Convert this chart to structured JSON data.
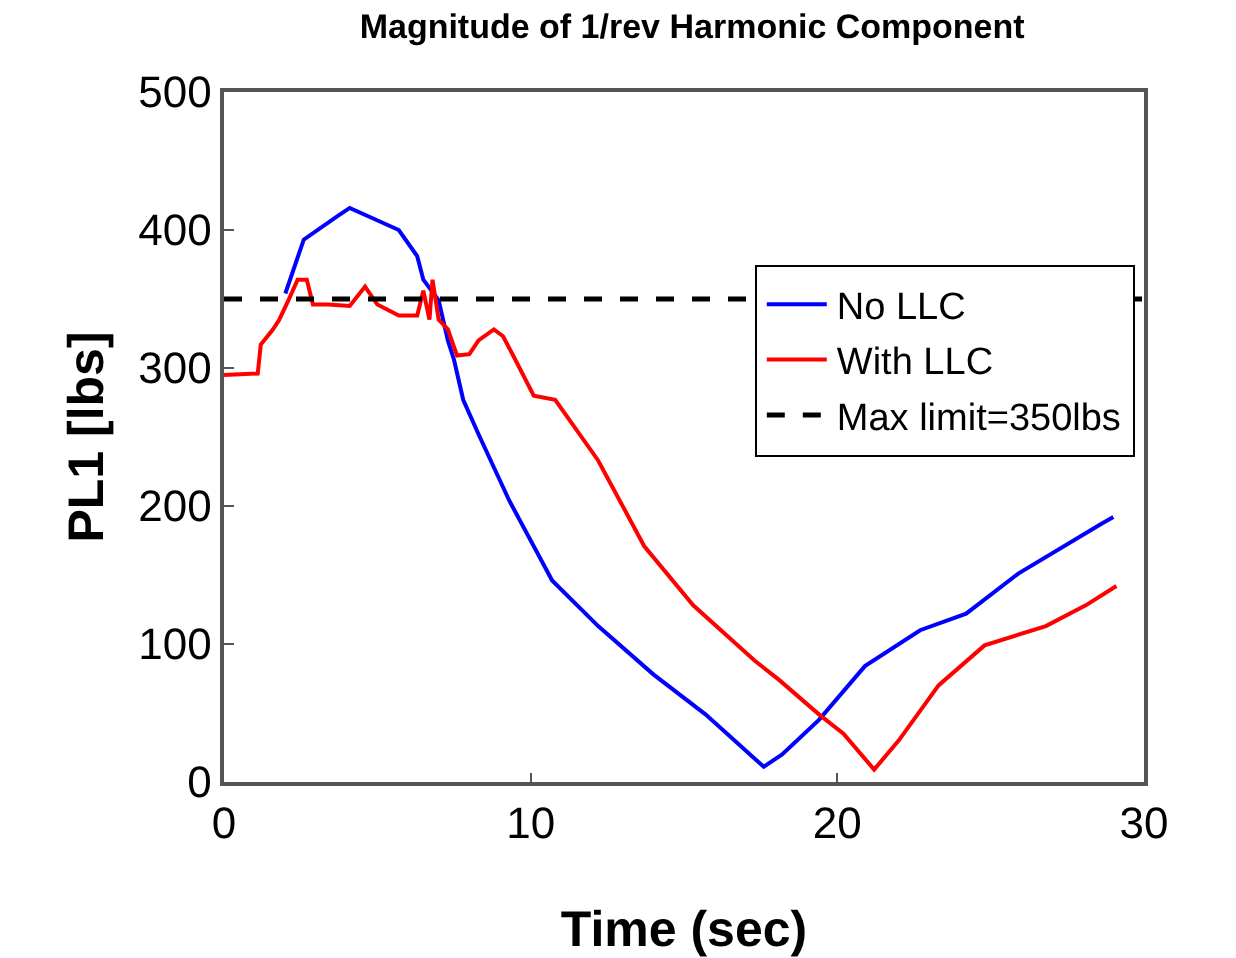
{
  "chart_data": {
    "type": "line",
    "title": "Magnitude of 1/rev Harmonic Component",
    "xlabel": "Time (sec)",
    "ylabel": "PL1 [lbs]",
    "xlim": [
      0,
      30
    ],
    "xticks": [
      0,
      10,
      20,
      30
    ],
    "ylim": [
      0,
      500
    ],
    "yticks": [
      0,
      100,
      200,
      300,
      400,
      500
    ],
    "grid": false,
    "legend": "right",
    "line_style": "solid",
    "marker": "none",
    "series": [
      {
        "name": "No LLC",
        "color": "#0000ff",
        "x": [
          2.0,
          2.6,
          3.7,
          4.1,
          5.7,
          6.3,
          6.5,
          7.0,
          7.3,
          7.5,
          7.8,
          8.3,
          9.3,
          10.7,
          12.2,
          14.0,
          15.7,
          17.6,
          18.2,
          19.4,
          20.9,
          22.7,
          24.2,
          25.9,
          28.6,
          29.0
        ],
        "values": [
          354,
          393,
          410,
          416,
          400,
          381,
          364,
          349,
          320,
          306,
          277,
          252,
          204,
          146,
          113,
          78,
          49,
          11,
          20,
          45,
          84,
          110,
          122,
          151,
          187,
          192
        ]
      },
      {
        "name": "With LLC",
        "color": "#ff0000",
        "x": [
          0,
          1.1,
          1.2,
          1.6,
          1.8,
          2.1,
          2.4,
          2.7,
          2.9,
          3.4,
          4.1,
          4.6,
          5.0,
          5.7,
          6.3,
          6.5,
          6.7,
          6.8,
          7.0,
          7.3,
          7.6,
          8.0,
          8.3,
          8.8,
          9.1,
          9.5,
          10.1,
          10.8,
          12.2,
          13.7,
          15.3,
          17.3,
          18.1,
          19.4,
          20.2,
          21.2,
          22.0,
          23.3,
          24.8,
          26.8,
          28.1,
          29.1
        ],
        "values": [
          295,
          296,
          317,
          328,
          335,
          349,
          364,
          364,
          346,
          346,
          345,
          359,
          346,
          338,
          338,
          356,
          335,
          364,
          335,
          328,
          309,
          310,
          320,
          328,
          323,
          306,
          280,
          277,
          233,
          171,
          128,
          88,
          74,
          49,
          35,
          9,
          30,
          70,
          99,
          113,
          128,
          142
        ]
      }
    ],
    "ref_lines": [
      {
        "axis": "y",
        "value": 350,
        "label": "Max limit=350lbs",
        "color": "#000000",
        "line_style": "dashed"
      }
    ]
  }
}
